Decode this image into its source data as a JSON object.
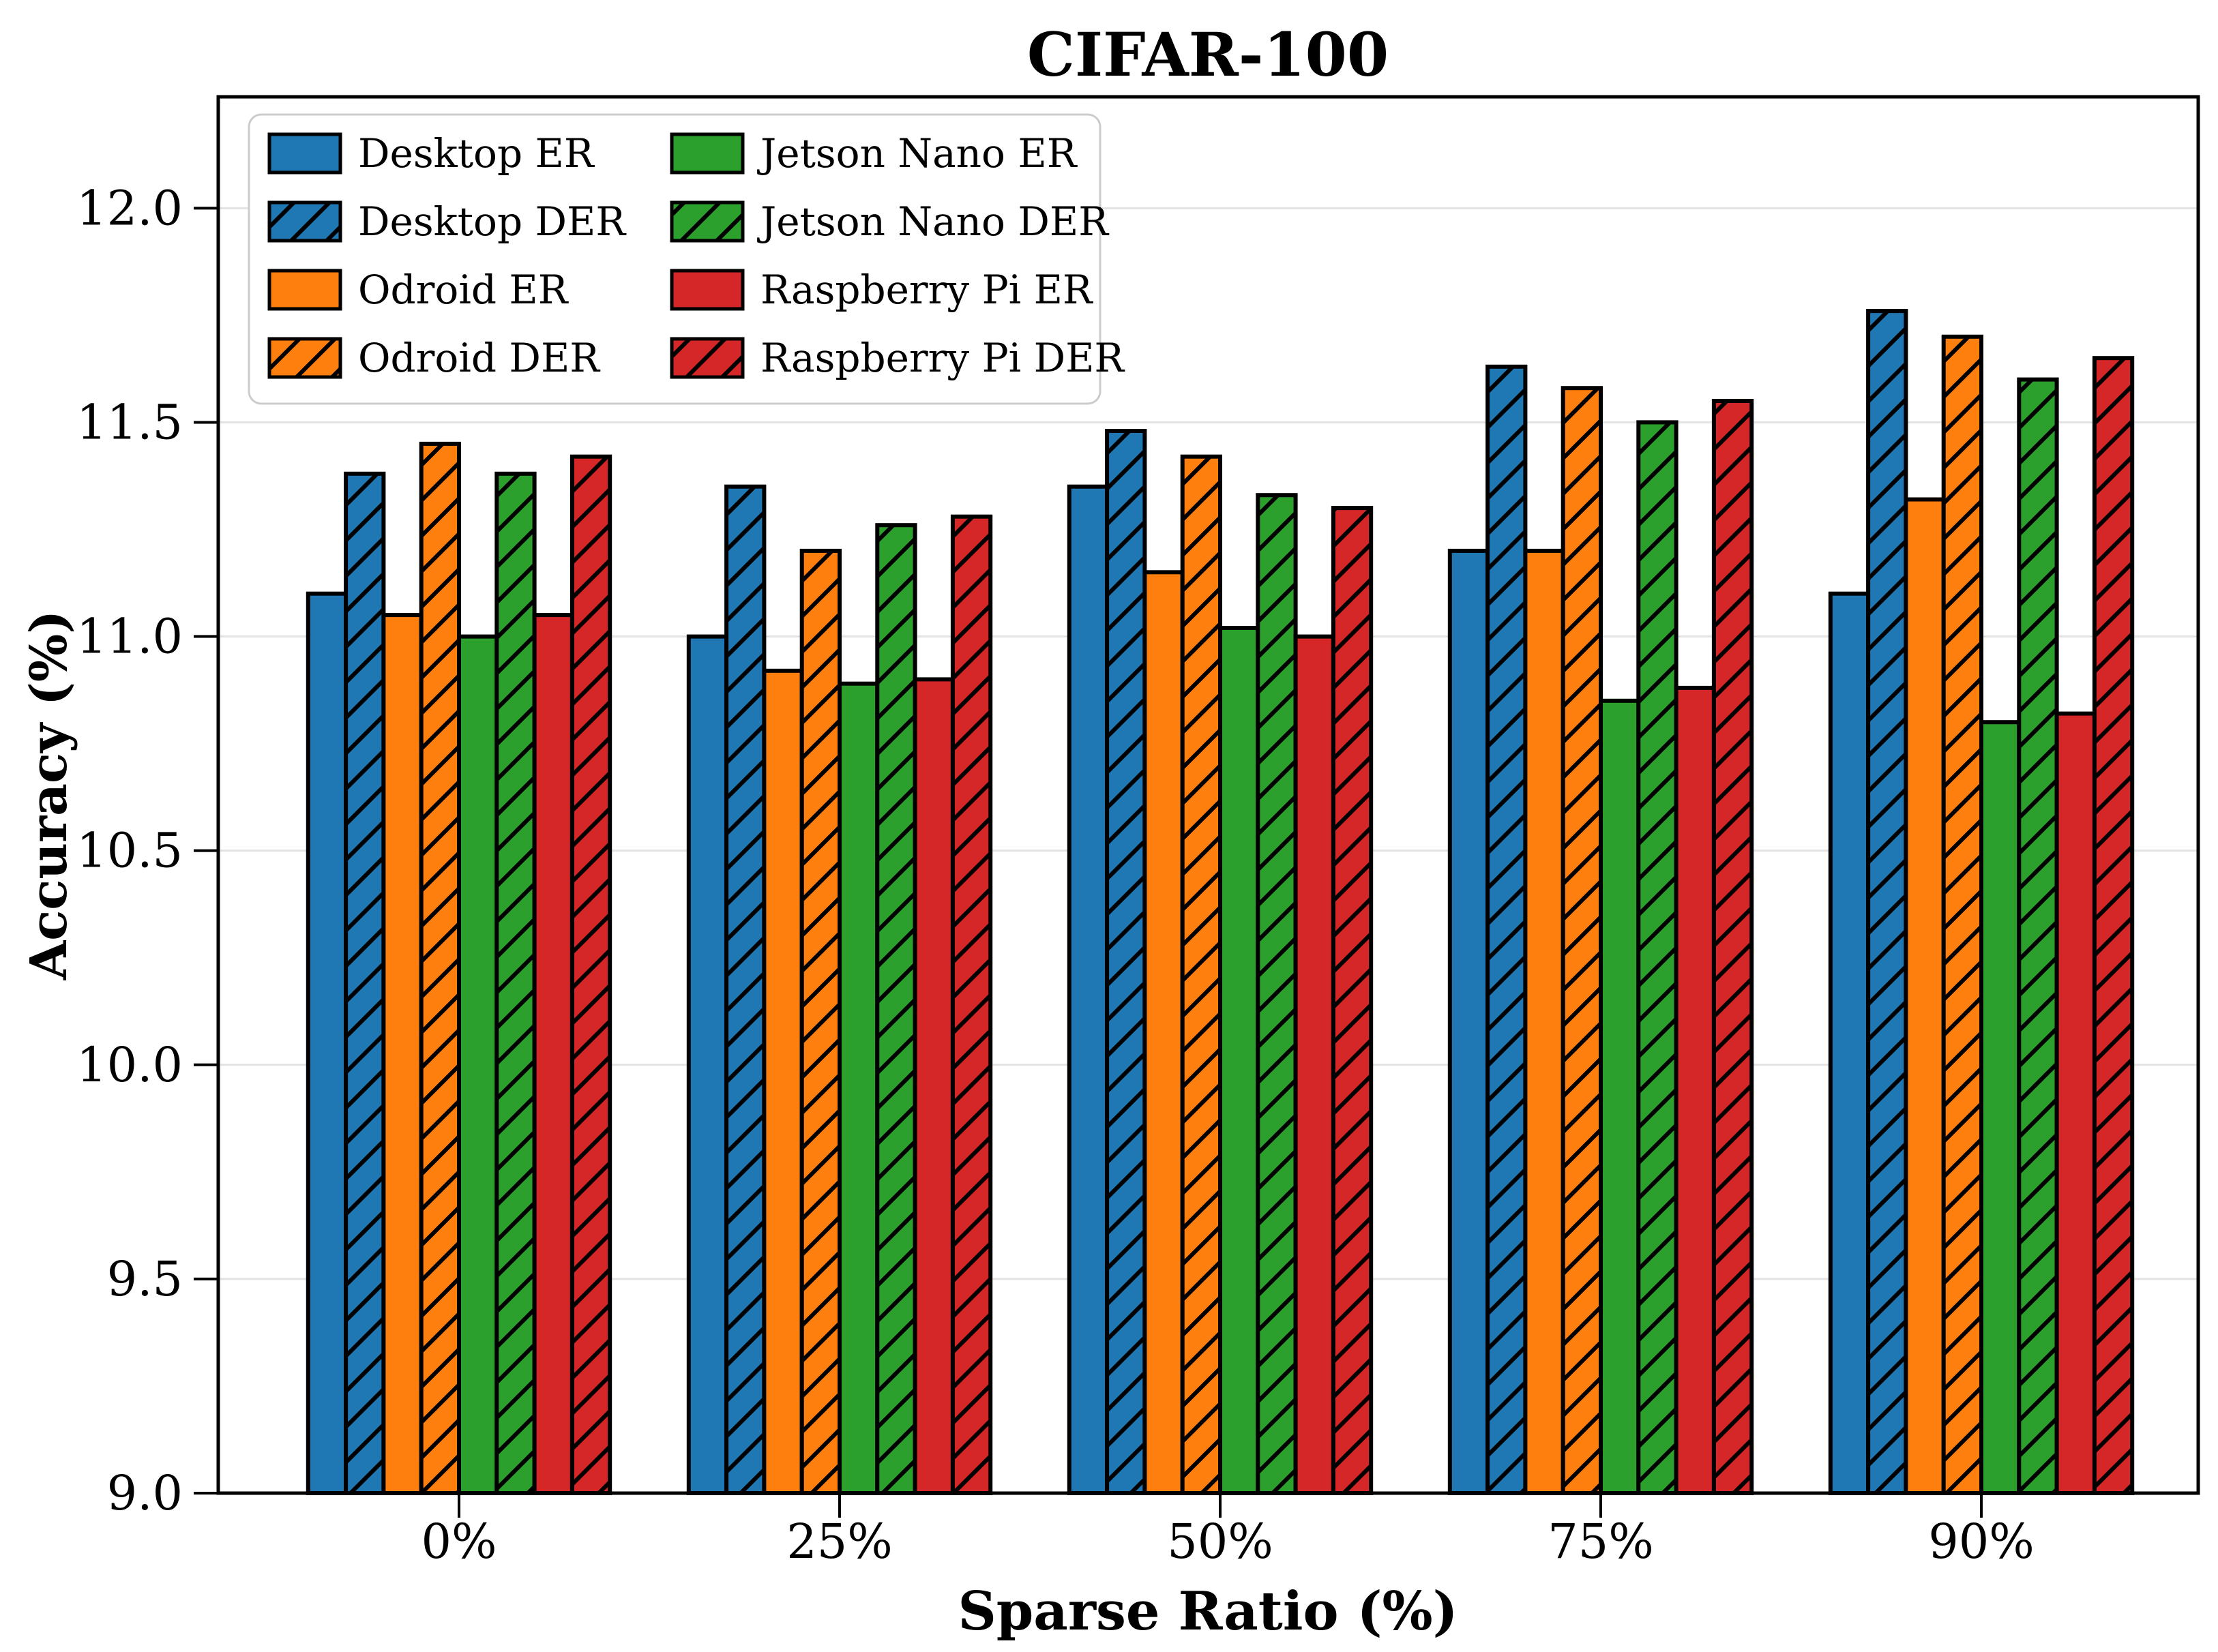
{
  "chart_data": {
    "type": "bar",
    "title": "CIFAR-100",
    "xlabel": "Sparse Ratio (%)",
    "ylabel": "Accuracy (%)",
    "categories": [
      "0%",
      "25%",
      "50%",
      "75%",
      "90%"
    ],
    "ylim": [
      9.0,
      12.26
    ],
    "yticks": [
      9.0,
      9.5,
      10.0,
      10.5,
      11.0,
      11.5,
      12.0
    ],
    "ytick_labels": [
      "9.0",
      "9.5",
      "10.0",
      "10.5",
      "11.0",
      "11.5",
      "12.0"
    ],
    "grid": true,
    "grid_color": "#e3e3e3",
    "bar_edge_color": "#000000",
    "legend_position": "upper-left",
    "legend_columns": 2,
    "series": [
      {
        "name": "Desktop ER",
        "color": "#1f77b4",
        "hatch": false,
        "values": [
          11.1,
          11.0,
          11.35,
          11.2,
          11.1
        ]
      },
      {
        "name": "Desktop DER",
        "color": "#1f77b4",
        "hatch": true,
        "values": [
          11.38,
          11.35,
          11.48,
          11.63,
          11.76
        ]
      },
      {
        "name": "Odroid ER",
        "color": "#ff7f0e",
        "hatch": false,
        "values": [
          11.05,
          10.92,
          11.15,
          11.2,
          11.32
        ]
      },
      {
        "name": "Odroid DER",
        "color": "#ff7f0e",
        "hatch": true,
        "values": [
          11.45,
          11.2,
          11.42,
          11.58,
          11.7
        ]
      },
      {
        "name": "Jetson Nano ER",
        "color": "#2ca02c",
        "hatch": false,
        "values": [
          11.0,
          10.89,
          11.02,
          10.85,
          10.8
        ]
      },
      {
        "name": "Jetson Nano DER",
        "color": "#2ca02c",
        "hatch": true,
        "values": [
          11.38,
          11.26,
          11.33,
          11.5,
          11.6
        ]
      },
      {
        "name": "Raspberry Pi ER",
        "color": "#d62728",
        "hatch": false,
        "values": [
          11.05,
          10.9,
          11.0,
          10.88,
          10.82
        ]
      },
      {
        "name": "Raspberry Pi DER",
        "color": "#d62728",
        "hatch": true,
        "values": [
          11.42,
          11.28,
          11.3,
          11.55,
          11.65
        ]
      }
    ]
  }
}
